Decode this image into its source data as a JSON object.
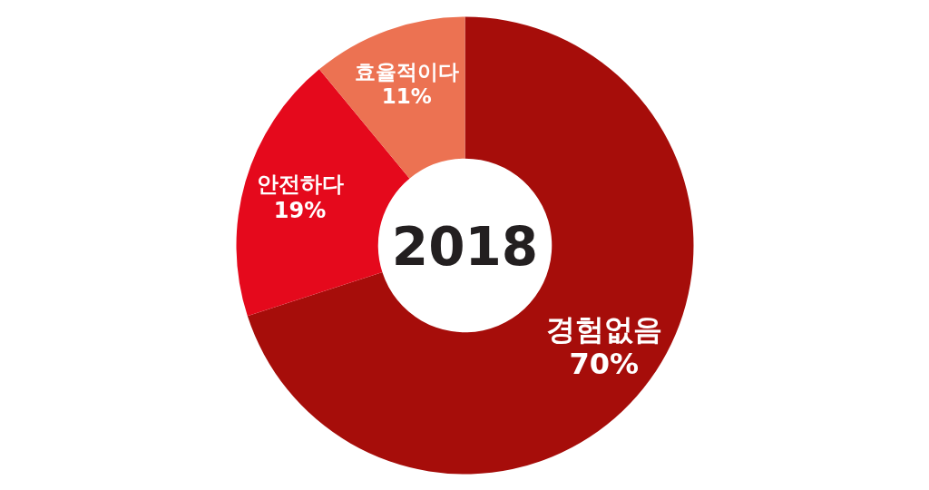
{
  "chart_data": {
    "type": "donut",
    "title": "2018",
    "categories": [
      "경험없음",
      "안전하다",
      "효율적이다"
    ],
    "values": [
      70,
      19,
      11
    ],
    "value_labels": [
      "70%",
      "19%",
      "11%"
    ],
    "colors": [
      "#a60d0a",
      "#e5091c",
      "#ec7252"
    ]
  }
}
